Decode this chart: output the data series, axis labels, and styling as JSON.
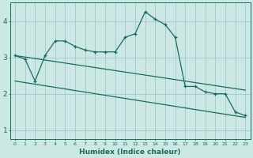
{
  "xlabel": "Humidex (Indice chaleur)",
  "background_color": "#cce8e4",
  "grid_color": "#aacccc",
  "line_color": "#1a6b5a",
  "xlim": [
    -0.5,
    23.5
  ],
  "ylim": [
    0.75,
    4.5
  ],
  "yticks": [
    1,
    2,
    3,
    4
  ],
  "xticks": [
    0,
    1,
    2,
    3,
    4,
    5,
    6,
    7,
    8,
    9,
    10,
    11,
    12,
    13,
    14,
    15,
    16,
    17,
    18,
    19,
    20,
    21,
    22,
    23
  ],
  "line1_x": [
    0,
    1,
    2,
    3,
    4,
    5,
    6,
    7,
    8,
    9,
    10,
    11,
    12,
    13,
    14,
    15,
    16,
    17,
    18,
    19,
    20,
    21,
    22,
    23
  ],
  "line1_y": [
    3.05,
    2.95,
    2.35,
    3.05,
    3.45,
    3.45,
    3.3,
    3.2,
    3.15,
    3.15,
    3.15,
    3.55,
    3.65,
    4.25,
    4.05,
    3.9,
    3.55,
    2.2,
    2.2,
    2.05,
    2.0,
    2.0,
    1.5,
    1.4
  ],
  "line2_x": [
    0,
    23
  ],
  "line2_y": [
    3.05,
    2.1
  ],
  "line3_x": [
    0,
    23
  ],
  "line3_y": [
    2.35,
    1.35
  ],
  "marker": "+"
}
